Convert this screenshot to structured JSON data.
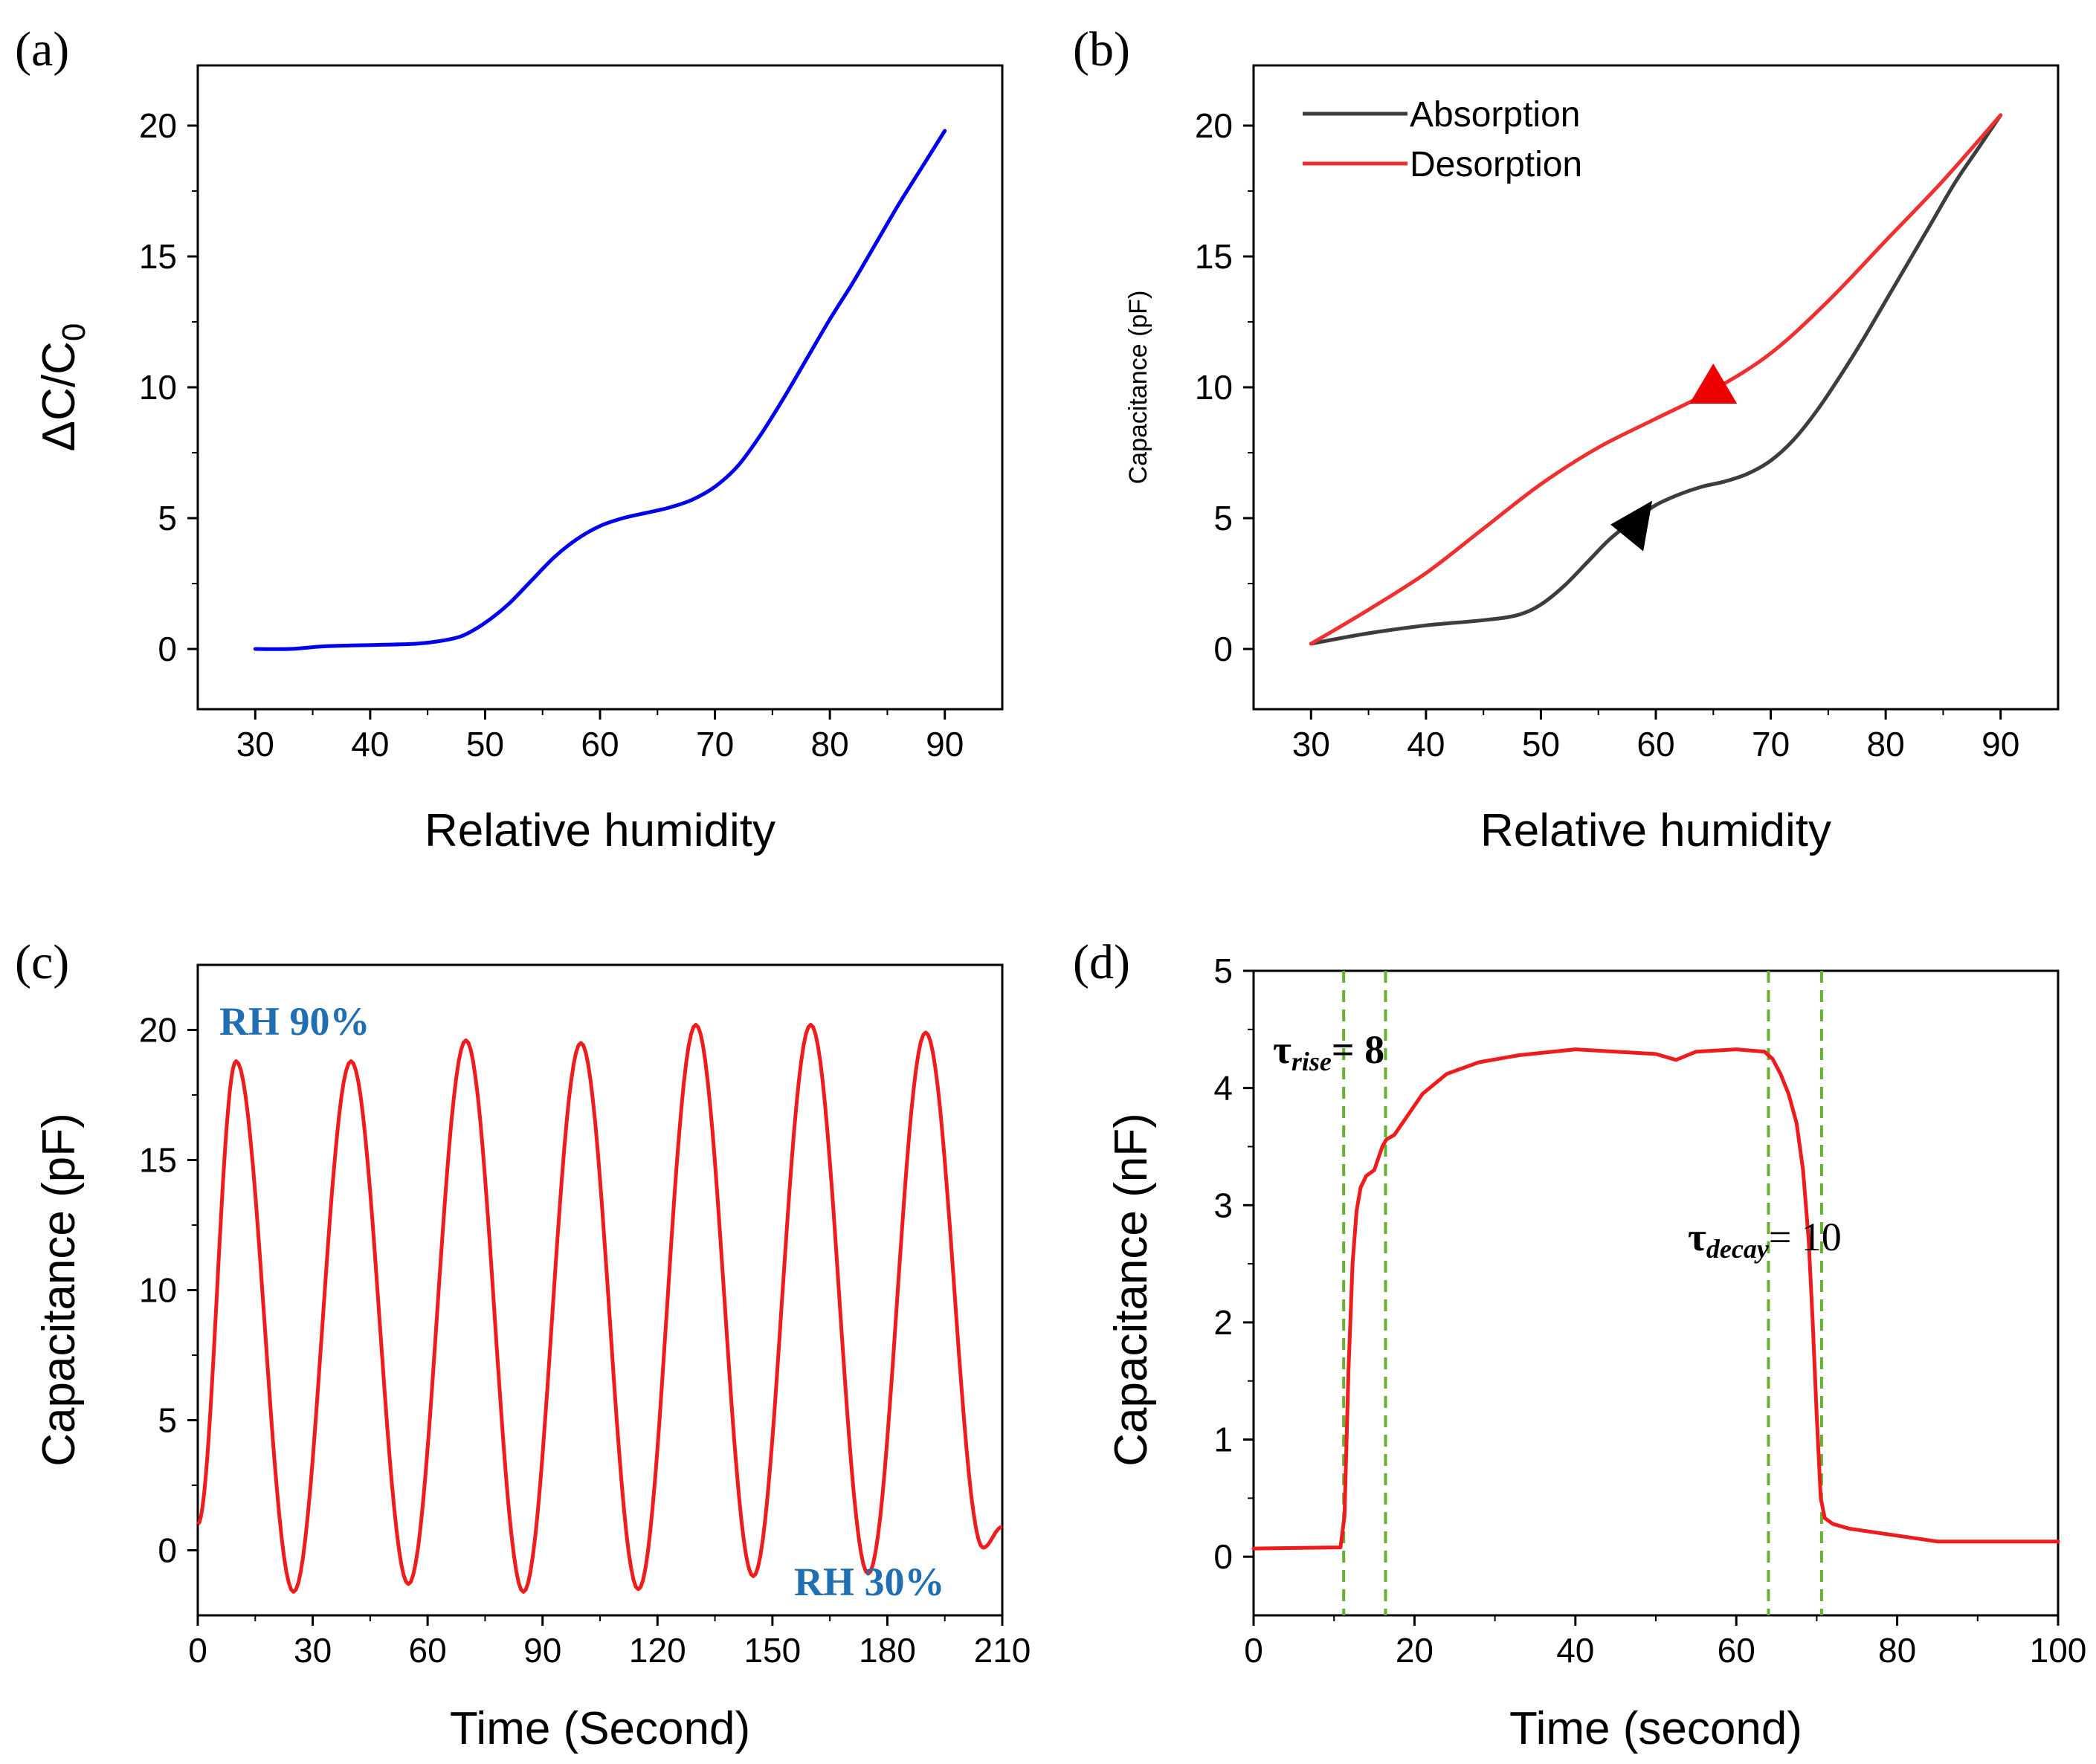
{
  "chart_data": [
    {
      "id": "a",
      "type": "line",
      "panel_label": "(a)",
      "title": "",
      "xlabel": "Relative humidity",
      "ylabel": "ΔC/C",
      "ylabel_sub": "0",
      "xlim": [
        25,
        95
      ],
      "ylim": [
        -2.3,
        22.3
      ],
      "xticks": [
        30,
        40,
        50,
        60,
        70,
        80,
        90
      ],
      "yticks": [
        0,
        5,
        10,
        15,
        20
      ],
      "grid": false,
      "series": [
        {
          "name": "ΔC/C0",
          "color": "#0000ee",
          "x": [
            30,
            33,
            36,
            40,
            44,
            46,
            48,
            50,
            52,
            54,
            56,
            58,
            60,
            62,
            64,
            66,
            68,
            70,
            72,
            74,
            76,
            78,
            80,
            82,
            84,
            86,
            88,
            90
          ],
          "y": [
            0,
            0,
            0.1,
            0.15,
            0.2,
            0.3,
            0.5,
            1.0,
            1.7,
            2.6,
            3.5,
            4.2,
            4.7,
            5.0,
            5.2,
            5.4,
            5.7,
            6.2,
            7.0,
            8.2,
            9.6,
            11.1,
            12.6,
            14.0,
            15.5,
            17.0,
            18.4,
            19.8
          ]
        }
      ]
    },
    {
      "id": "b",
      "type": "line",
      "panel_label": "(b)",
      "title": "",
      "xlabel": "Relative humidity",
      "ylabel": "Capacitance (pF)",
      "xlim": [
        25,
        95
      ],
      "ylim": [
        -2.3,
        22.3
      ],
      "xticks": [
        30,
        40,
        50,
        60,
        70,
        80,
        90
      ],
      "yticks": [
        0,
        5,
        10,
        15,
        20
      ],
      "grid": false,
      "legend": "top-left",
      "series": [
        {
          "name": "Absorption",
          "color": "#3d3d3d",
          "x": [
            30,
            35,
            40,
            45,
            48,
            50,
            52,
            54,
            56,
            58,
            60,
            62,
            64,
            66,
            68,
            70,
            72,
            74,
            76,
            78,
            80,
            82,
            84,
            86,
            88,
            90
          ],
          "y": [
            0.2,
            0.6,
            0.9,
            1.1,
            1.3,
            1.7,
            2.4,
            3.3,
            4.2,
            4.9,
            5.5,
            5.9,
            6.2,
            6.4,
            6.7,
            7.2,
            8.0,
            9.1,
            10.4,
            11.8,
            13.3,
            14.8,
            16.3,
            17.8,
            19.1,
            20.4
          ]
        },
        {
          "name": "Desorption",
          "color": "#ee3030",
          "x": [
            30,
            35,
            40,
            45,
            50,
            55,
            60,
            65,
            70,
            75,
            80,
            85,
            90
          ],
          "y": [
            0.2,
            1.5,
            2.9,
            4.6,
            6.3,
            7.7,
            8.8,
            9.9,
            11.3,
            13.3,
            15.6,
            17.9,
            20.4
          ]
        }
      ],
      "markers": [
        {
          "name": "absorption-arrow",
          "x": 58,
          "y": 4.7,
          "color": "#000000",
          "direction": "up-right"
        },
        {
          "name": "desorption-arrow",
          "x": 65,
          "y": 10.0,
          "color": "#ee0000",
          "direction": "up"
        }
      ]
    },
    {
      "id": "c",
      "type": "line",
      "panel_label": "(c)",
      "title": "",
      "xlabel": "Time (Second)",
      "ylabel": "Capacitance (pF)",
      "xlim": [
        0,
        210
      ],
      "ylim": [
        -2.5,
        22.5
      ],
      "xticks": [
        0,
        30,
        60,
        90,
        120,
        150,
        180,
        210
      ],
      "yticks": [
        0,
        5,
        10,
        15,
        20
      ],
      "grid": false,
      "series": [
        {
          "name": "Capacitance",
          "color": "#ee1c1c",
          "peaks": [
            [
              10,
              18.8
            ],
            [
              40,
              18.8
            ],
            [
              70,
              19.6
            ],
            [
              100,
              19.5
            ],
            [
              130,
              20.2
            ],
            [
              160,
              20.2
            ],
            [
              190,
              19.9
            ]
          ],
          "troughs": [
            [
              25,
              -1.6
            ],
            [
              55,
              -1.3
            ],
            [
              85,
              -1.6
            ],
            [
              115,
              -1.5
            ],
            [
              145,
              -1.0
            ],
            [
              175,
              -0.9
            ],
            [
              205,
              0.1
            ]
          ],
          "start": [
            0,
            1.0
          ],
          "end": [
            210,
            0.9
          ]
        }
      ],
      "annotations": [
        {
          "text": "RH 90%"
        },
        {
          "text": "RH 30%"
        }
      ]
    },
    {
      "id": "d",
      "type": "line",
      "panel_label": "(d)",
      "title": "",
      "xlabel": "Time (second)",
      "ylabel": "Capacitance (nF)",
      "xlim": [
        0,
        100
      ],
      "ylim": [
        -0.5,
        5
      ],
      "xticks": [
        0,
        20,
        40,
        60,
        80,
        100
      ],
      "yticks": [
        0,
        1,
        2,
        3,
        4,
        5
      ],
      "grid": false,
      "series": [
        {
          "name": "Capacitance",
          "color": "#ee1c1c",
          "x": [
            0,
            10.8,
            11.3,
            11.8,
            12.3,
            12.8,
            13.3,
            14.0,
            15.0,
            16.0,
            16.5,
            17.5,
            19,
            21,
            24,
            28,
            33,
            40,
            45,
            50,
            52.5,
            55,
            60,
            63.5,
            64.5,
            65.5,
            66.5,
            67.5,
            68.3,
            69.0,
            69.5,
            70.0,
            70.5,
            71.0,
            72,
            74,
            78,
            85,
            100
          ],
          "y": [
            0.07,
            0.08,
            0.35,
            1.6,
            2.5,
            2.95,
            3.15,
            3.25,
            3.3,
            3.5,
            3.56,
            3.6,
            3.75,
            3.95,
            4.12,
            4.22,
            4.28,
            4.33,
            4.31,
            4.29,
            4.24,
            4.31,
            4.33,
            4.31,
            4.25,
            4.12,
            3.95,
            3.7,
            3.3,
            2.7,
            2.0,
            1.2,
            0.5,
            0.33,
            0.28,
            0.24,
            0.2,
            0.13,
            0.13
          ]
        }
      ],
      "vlines": [
        11.2,
        16.4,
        64.0,
        70.6
      ],
      "vline_color": "#66b032",
      "annotations": [
        {
          "symbol": "τ",
          "sub": "rise",
          "rest": "= 8"
        },
        {
          "symbol": "τ",
          "sub": "decay",
          "rest": "= 10"
        }
      ]
    }
  ]
}
